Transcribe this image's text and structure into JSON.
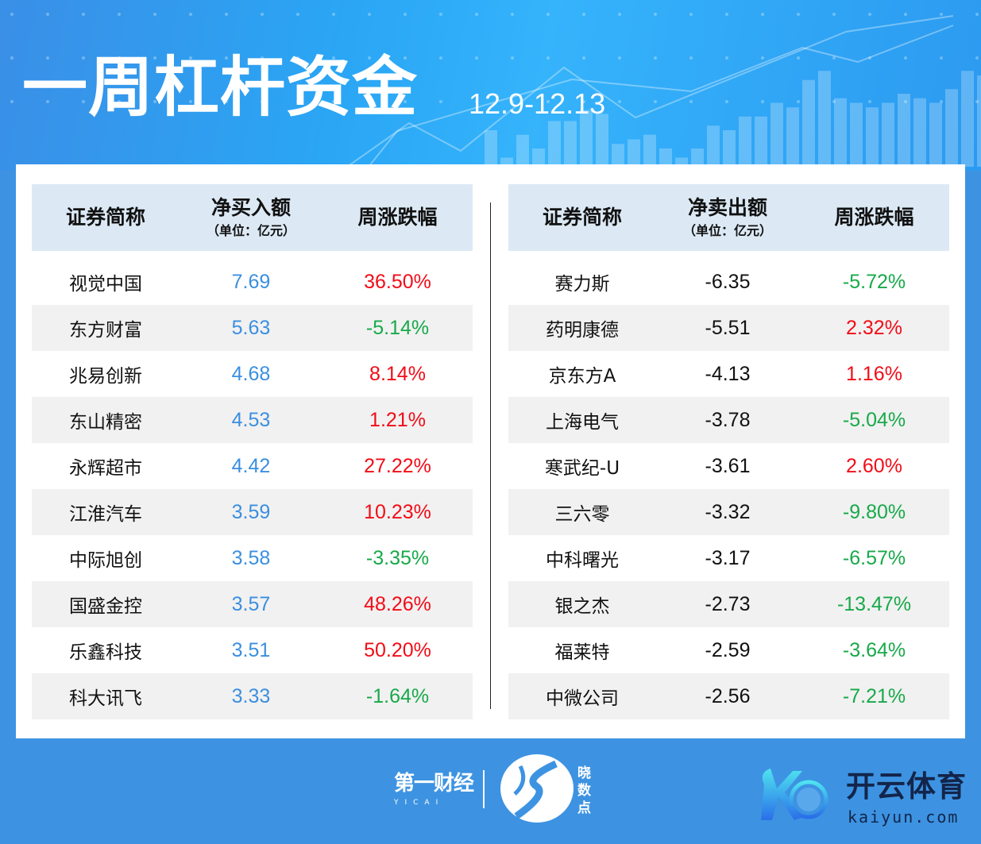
{
  "header": {
    "title": "一周杠杆资金",
    "date_range": "12.9-12.13"
  },
  "colors": {
    "value_blue": "#3b8fe0",
    "up_red": "#f20c17",
    "down_green": "#18a94a",
    "header_bg": "#dce9f5",
    "background": "#3d93e2"
  },
  "buy_table": {
    "columns": [
      "证券简称",
      "净买入额",
      "周涨跌幅"
    ],
    "unit": "（单位：亿元）",
    "rows": [
      {
        "name": "视觉中国",
        "amount": "7.69",
        "change": "36.50%"
      },
      {
        "name": "东方财富",
        "amount": "5.63",
        "change": "-5.14%"
      },
      {
        "name": "兆易创新",
        "amount": "4.68",
        "change": "8.14%"
      },
      {
        "name": "东山精密",
        "amount": "4.53",
        "change": "1.21%"
      },
      {
        "name": "永辉超市",
        "amount": "4.42",
        "change": "27.22%"
      },
      {
        "name": "江淮汽车",
        "amount": "3.59",
        "change": "10.23%"
      },
      {
        "name": "中际旭创",
        "amount": "3.58",
        "change": "-3.35%"
      },
      {
        "name": "国盛金控",
        "amount": "3.57",
        "change": "48.26%"
      },
      {
        "name": "乐鑫科技",
        "amount": "3.51",
        "change": "50.20%"
      },
      {
        "name": "科大讯飞",
        "amount": "3.33",
        "change": "-1.64%"
      }
    ]
  },
  "sell_table": {
    "columns": [
      "证券简称",
      "净卖出额",
      "周涨跌幅"
    ],
    "unit": "（单位：亿元）",
    "rows": [
      {
        "name": "赛力斯",
        "amount": "-6.35",
        "change": "-5.72%"
      },
      {
        "name": "药明康德",
        "amount": "-5.51",
        "change": "2.32%"
      },
      {
        "name": "京东方A",
        "amount": "-4.13",
        "change": "1.16%"
      },
      {
        "name": "上海电气",
        "amount": "-3.78",
        "change": "-5.04%"
      },
      {
        "name": "寒武纪-U",
        "amount": "-3.61",
        "change": "2.60%"
      },
      {
        "name": "三六零",
        "amount": "-3.32",
        "change": "-9.80%"
      },
      {
        "name": "中科曙光",
        "amount": "-3.17",
        "change": "-6.57%"
      },
      {
        "name": "银之杰",
        "amount": "-2.73",
        "change": "-13.47%"
      },
      {
        "name": "福莱特",
        "amount": "-2.59",
        "change": "-3.64%"
      },
      {
        "name": "中微公司",
        "amount": "-2.56",
        "change": "-7.21%"
      }
    ]
  },
  "footer": {
    "yicai": "第一财经",
    "yicai_sub": "YICAI",
    "xiaoshudian": "晓数点",
    "kaiyun": "开云体育",
    "kaiyun_url": "kaiyun.com"
  }
}
